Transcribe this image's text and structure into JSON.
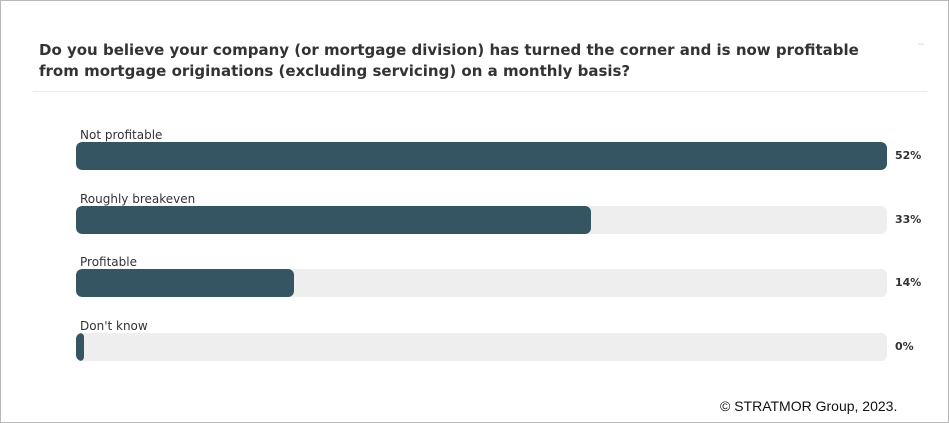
{
  "question": "Do you believe your company (or mortgage division) has turned the corner and is now profitable from mortgage originations (excluding servicing) on a monthly basis?",
  "copyright": "© STRATMOR Group, 2023.",
  "colors": {
    "bar": "#355562",
    "track": "#eeeeee",
    "text": "#333333"
  },
  "chart_data": {
    "type": "bar",
    "orientation": "horizontal",
    "title": "Do you believe your company (or mortgage division) has turned the corner and is now profitable from mortgage originations (excluding servicing) on a monthly basis?",
    "categories": [
      "Not profitable",
      "Roughly breakeven",
      "Profitable",
      "Don't know"
    ],
    "values": [
      52,
      33,
      14,
      0
    ],
    "value_labels": [
      "52%",
      "33%",
      "14%",
      "0%"
    ],
    "unit": "%",
    "bar_scale_max": 52
  }
}
